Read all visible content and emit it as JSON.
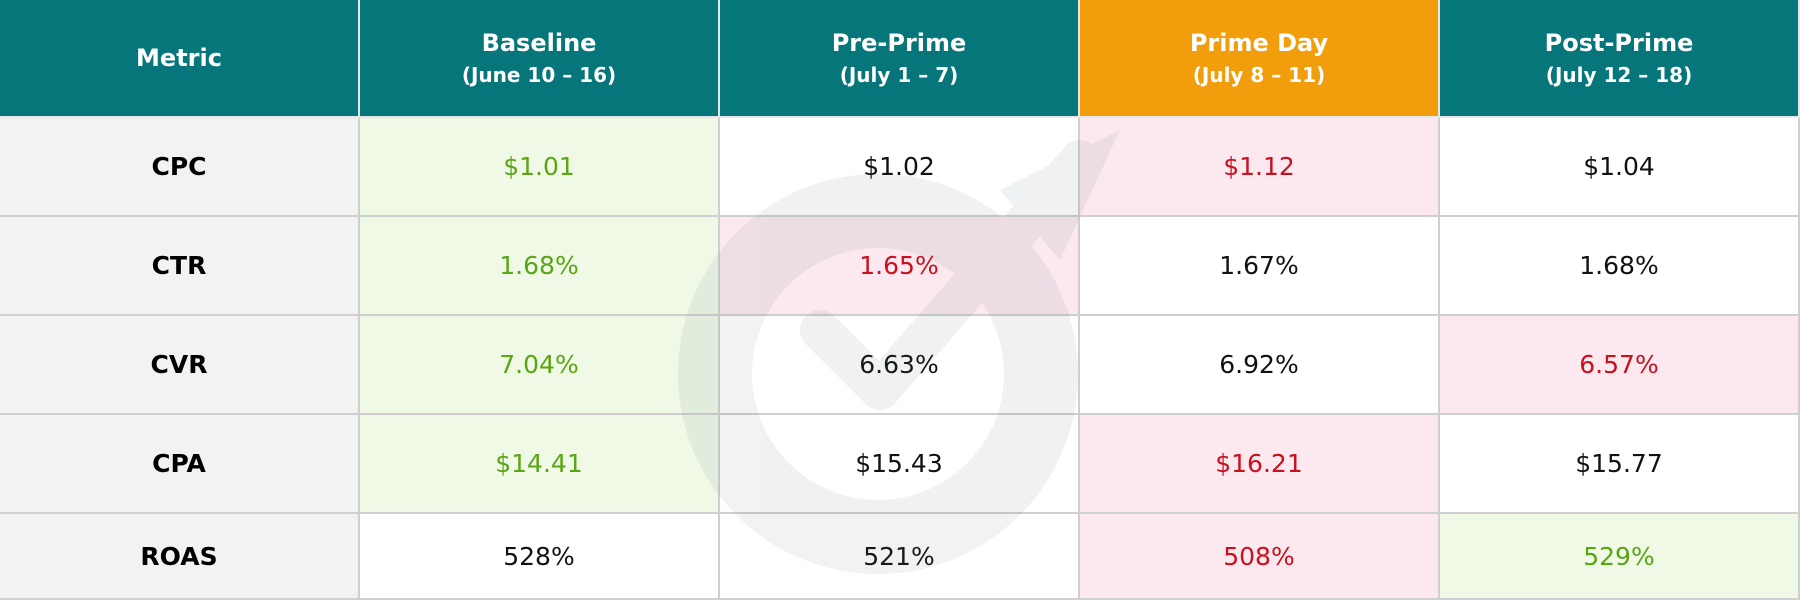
{
  "table": {
    "header_color": "#06767a",
    "header_text_color": "#ffffff",
    "metric_background": "#f2f2f2",
    "columns": [
      {
        "title": "Metric",
        "color": "#06767a"
      },
      {
        "title": "Baseline",
        "subtitle": "(June 10 – 16)",
        "color": "#06767a"
      },
      {
        "title": "Pre-Prime",
        "subtitle": "(July 1 – 7)",
        "color": "#06767a"
      },
      {
        "title": "Prime Day",
        "subtitle": "(July 8 – 11)",
        "color": "#f29e0c"
      },
      {
        "title": "Post-Prime",
        "subtitle": "(July 12 – 18)",
        "color": "#06767a"
      }
    ],
    "rows": [
      {
        "metric": "CPC",
        "cells": [
          "$1.01",
          "$1.02",
          "$1.12",
          "$1.04"
        ],
        "backgrounds": [
          "#f0f9e6",
          "#ffffff",
          "#fce8ef",
          "#ffffff"
        ],
        "text_colors": [
          "#5aa514",
          "#111111",
          "#c8101e",
          "#111111"
        ]
      },
      {
        "metric": "CTR",
        "cells": [
          "1.68%",
          "1.65%",
          "1.67%",
          "1.68%"
        ],
        "backgrounds": [
          "#f0f9e6",
          "#fce8ef",
          "#ffffff",
          "#ffffff"
        ],
        "text_colors": [
          "#5aa514",
          "#c8101e",
          "#111111",
          "#111111"
        ]
      },
      {
        "metric": "CVR",
        "cells": [
          "7.04%",
          "6.63%",
          "6.92%",
          "6.57%"
        ],
        "backgrounds": [
          "#f0f9e6",
          "#ffffff",
          "#ffffff",
          "#fce8ef"
        ],
        "text_colors": [
          "#5aa514",
          "#111111",
          "#111111",
          "#c8101e"
        ]
      },
      {
        "metric": "CPA",
        "cells": [
          "$14.41",
          "$15.43",
          "$16.21",
          "$15.77"
        ],
        "backgrounds": [
          "#f0f9e6",
          "#ffffff",
          "#fce8ef",
          "#ffffff"
        ],
        "text_colors": [
          "#5aa514",
          "#111111",
          "#c8101e",
          "#111111"
        ]
      },
      {
        "metric": "ROAS",
        "cells": [
          "528%",
          "521%",
          "508%",
          "529%"
        ],
        "backgrounds": [
          "#ffffff",
          "#ffffff",
          "#fce8ef",
          "#f0f9e6"
        ],
        "text_colors": [
          "#111111",
          "#111111",
          "#c8101e",
          "#5aa514"
        ]
      }
    ]
  }
}
